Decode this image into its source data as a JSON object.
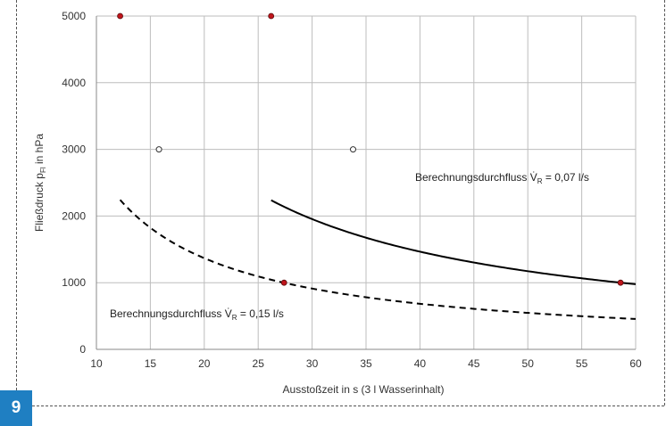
{
  "figure": {
    "number": "9"
  },
  "chart_data": {
    "type": "line",
    "xlabel": "Ausstoßzeit in s   (3 l Wasserinhalt)",
    "ylabel_main": "Fließdruck  p",
    "ylabel_sub": "Fl",
    "ylabel_tail": "  in hPa",
    "xlim": [
      10,
      60
    ],
    "ylim": [
      0,
      5000
    ],
    "x_ticks": [
      10,
      15,
      20,
      25,
      30,
      35,
      40,
      45,
      50,
      55,
      60
    ],
    "y_ticks": [
      0,
      1000,
      2000,
      3000,
      4000,
      5000
    ],
    "grid": true,
    "series": [
      {
        "name": "Berechnungsdurchfluss V̇R = 0,15 l/s",
        "label_prefix": "Berechnungsdurchfluss V̇",
        "label_sub": "R",
        "label_suffix": " = 0,15 l/s",
        "style": "dashed",
        "constant": 27360,
        "x_range": [
          12.2,
          60
        ],
        "markers_red": [
          [
            12.2,
            5000
          ],
          [
            27.4,
            1000
          ]
        ],
        "markers_open": [
          [
            15.8,
            3000
          ]
        ]
      },
      {
        "name": "Berechnungsdurchfluss V̇R = 0,07 l/s",
        "label_prefix": "Berechnungsdurchfluss V̇",
        "label_sub": "R",
        "label_suffix": " = 0,07 l/s",
        "style": "solid",
        "constant": 58620,
        "x_range": [
          26.2,
          60
        ],
        "markers_red": [
          [
            26.2,
            5000
          ],
          [
            58.6,
            1000
          ]
        ],
        "markers_open": [
          [
            33.8,
            3000
          ]
        ]
      }
    ]
  }
}
